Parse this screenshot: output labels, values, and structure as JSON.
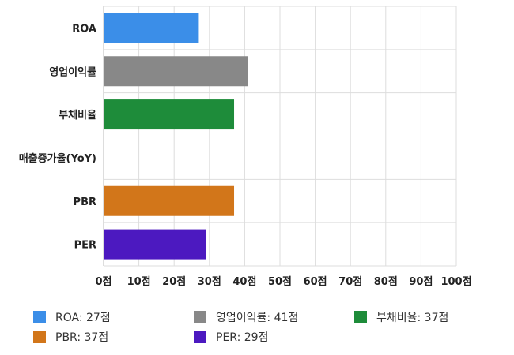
{
  "chart_data": {
    "type": "bar",
    "orientation": "horizontal",
    "categories": [
      "ROA",
      "영업이익률",
      "부채비율",
      "매출증가율(YoY)",
      "PBR",
      "PER"
    ],
    "values": [
      27,
      41,
      37,
      null,
      37,
      29
    ],
    "colors": [
      "#3b8ee8",
      "#888888",
      "#1e8c3a",
      null,
      "#d2761a",
      "#4c19c0"
    ],
    "xlim": [
      0,
      100
    ],
    "xticks": [
      0,
      10,
      20,
      30,
      40,
      50,
      60,
      70,
      80,
      90,
      100
    ],
    "tick_labels": [
      "0점",
      "10점",
      "20점",
      "30점",
      "40점",
      "50점",
      "60점",
      "70점",
      "80점",
      "90점",
      "100점"
    ],
    "grid": true,
    "legend_position": "bottom",
    "legend": [
      {
        "label": "ROA: 27점",
        "color": "#3b8ee8"
      },
      {
        "label": "영업이익률: 41점",
        "color": "#888888"
      },
      {
        "label": "부채비율: 37점",
        "color": "#1e8c3a"
      },
      {
        "label": "PBR: 37점",
        "color": "#d2761a"
      },
      {
        "label": "PER: 29점",
        "color": "#4c19c0"
      }
    ]
  }
}
